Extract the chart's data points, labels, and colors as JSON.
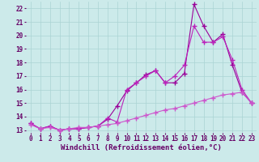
{
  "x": [
    0,
    1,
    2,
    3,
    4,
    5,
    6,
    7,
    8,
    9,
    10,
    11,
    12,
    13,
    14,
    15,
    16,
    17,
    18,
    19,
    20,
    21,
    22,
    23
  ],
  "line1": [
    13.5,
    13.1,
    13.3,
    13.0,
    13.1,
    13.1,
    13.2,
    13.3,
    13.8,
    14.8,
    15.9,
    16.5,
    17.1,
    17.4,
    16.5,
    16.5,
    17.2,
    22.3,
    20.7,
    19.5,
    20.1,
    17.8,
    15.8,
    15.0
  ],
  "line2": [
    13.5,
    13.1,
    13.3,
    13.0,
    13.1,
    13.1,
    13.2,
    13.3,
    13.9,
    13.6,
    16.0,
    16.5,
    17.0,
    17.4,
    16.5,
    17.0,
    17.8,
    20.7,
    19.5,
    19.5,
    19.9,
    18.2,
    16.0,
    15.0
  ],
  "line3": [
    13.4,
    13.1,
    13.2,
    13.0,
    13.1,
    13.2,
    13.2,
    13.3,
    13.4,
    13.5,
    13.7,
    13.9,
    14.1,
    14.3,
    14.5,
    14.6,
    14.8,
    15.0,
    15.2,
    15.4,
    15.6,
    15.7,
    15.8,
    15.0
  ],
  "line_color1": "#990099",
  "line_color2": "#bb22bb",
  "line_color3": "#cc55cc",
  "bg_color": "#cceaea",
  "grid_color": "#aad4d4",
  "xlabel": "Windchill (Refroidissement éolien,°C)",
  "xlim": [
    -0.5,
    23.5
  ],
  "ylim": [
    12.8,
    22.5
  ],
  "xticks": [
    0,
    1,
    2,
    3,
    4,
    5,
    6,
    7,
    8,
    9,
    10,
    11,
    12,
    13,
    14,
    15,
    16,
    17,
    18,
    19,
    20,
    21,
    22,
    23
  ],
  "yticks": [
    13,
    14,
    15,
    16,
    17,
    18,
    19,
    20,
    21,
    22
  ],
  "marker": "+",
  "markersize": 4,
  "linewidth": 0.8,
  "xlabel_fontsize": 6.5,
  "tick_fontsize": 5.5
}
